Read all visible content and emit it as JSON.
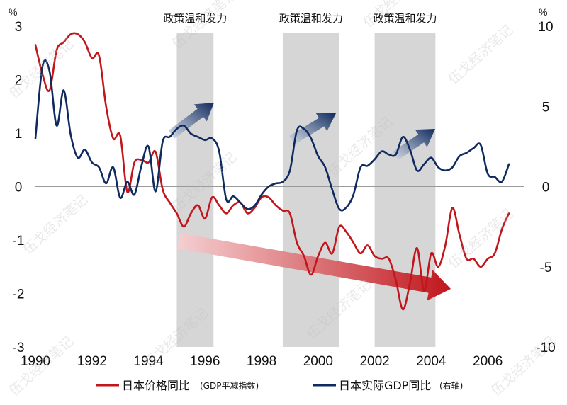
{
  "chart_data": {
    "type": "line",
    "title": "",
    "xlabel": "",
    "left_axis": {
      "unit": "%",
      "ylim": [
        -3,
        3
      ],
      "ticks": [
        -3,
        -2,
        -1,
        0,
        1,
        2,
        3
      ]
    },
    "right_axis": {
      "unit": "%",
      "ylim": [
        -10,
        10
      ],
      "ticks": [
        -10,
        -5,
        0,
        5,
        10
      ]
    },
    "x_axis": {
      "xlim": [
        1990,
        2007.3
      ],
      "ticks": [
        1990,
        1992,
        1994,
        1996,
        1998,
        2000,
        2002,
        2004,
        2006
      ]
    },
    "shaded_periods": [
      {
        "start": 1995.0,
        "end": 1996.3,
        "label": "政策温和发力"
      },
      {
        "start": 1998.75,
        "end": 2000.75,
        "label": "政策温和发力"
      },
      {
        "start": 2002.0,
        "end": 2004.15,
        "label": "政策温和发力"
      }
    ],
    "series": [
      {
        "name": "日本价格同比",
        "note": "(GDP平减指数)",
        "axis": "left",
        "color": "#c0161c",
        "x": [
          1990.0,
          1990.25,
          1990.5,
          1990.75,
          1991.0,
          1991.25,
          1991.5,
          1991.75,
          1992.0,
          1992.25,
          1992.5,
          1992.75,
          1993.0,
          1993.25,
          1993.5,
          1993.75,
          1994.0,
          1994.25,
          1994.5,
          1994.75,
          1995.0,
          1995.25,
          1995.5,
          1995.75,
          1996.0,
          1996.25,
          1996.5,
          1996.75,
          1997.0,
          1997.25,
          1997.5,
          1997.75,
          1998.0,
          1998.25,
          1998.5,
          1998.75,
          1999.0,
          1999.25,
          1999.5,
          1999.75,
          2000.0,
          2000.25,
          2000.5,
          2000.75,
          2001.0,
          2001.25,
          2001.5,
          2001.75,
          2002.0,
          2002.25,
          2002.5,
          2002.75,
          2003.0,
          2003.25,
          2003.5,
          2003.75,
          2004.0,
          2004.25,
          2004.5,
          2004.75,
          2005.0,
          2005.25,
          2005.5,
          2005.75,
          2006.0,
          2006.25,
          2006.5,
          2006.75
        ],
        "values": [
          2.65,
          2.1,
          1.8,
          2.55,
          2.7,
          2.85,
          2.85,
          2.7,
          2.4,
          2.45,
          1.5,
          0.9,
          0.95,
          -0.1,
          0.45,
          0.5,
          0.45,
          0.65,
          -0.05,
          -0.3,
          -0.5,
          -0.75,
          -0.5,
          -0.35,
          -0.6,
          -0.2,
          -0.35,
          -0.5,
          -0.35,
          -0.3,
          -0.5,
          -0.4,
          -0.2,
          -0.2,
          -0.35,
          -0.45,
          -0.5,
          -1.05,
          -1.3,
          -1.65,
          -1.3,
          -1.05,
          -1.25,
          -0.75,
          -0.85,
          -1.05,
          -1.25,
          -1.1,
          -1.3,
          -1.35,
          -1.35,
          -1.75,
          -2.3,
          -1.8,
          -1.15,
          -1.95,
          -1.25,
          -1.5,
          -1.1,
          -0.4,
          -0.9,
          -1.35,
          -1.35,
          -1.5,
          -1.35,
          -1.25,
          -0.8,
          -0.5
        ]
      },
      {
        "name": "日本实际GDP同比",
        "note": "(右轴)",
        "axis": "right",
        "color": "#0f2a5e",
        "x": [
          1990.0,
          1990.25,
          1990.5,
          1990.75,
          1991.0,
          1991.25,
          1991.5,
          1991.75,
          1992.0,
          1992.25,
          1992.5,
          1992.75,
          1993.0,
          1993.25,
          1993.5,
          1993.75,
          1994.0,
          1994.25,
          1994.5,
          1994.75,
          1995.0,
          1995.25,
          1995.5,
          1995.75,
          1996.0,
          1996.25,
          1996.5,
          1996.75,
          1997.0,
          1997.25,
          1997.5,
          1997.75,
          1998.0,
          1998.25,
          1998.5,
          1998.75,
          1999.0,
          1999.25,
          1999.5,
          1999.75,
          2000.0,
          2000.25,
          2000.5,
          2000.75,
          2001.0,
          2001.25,
          2001.5,
          2001.75,
          2002.0,
          2002.25,
          2002.5,
          2002.75,
          2003.0,
          2003.25,
          2003.5,
          2003.75,
          2004.0,
          2004.25,
          2004.5,
          2004.75,
          2005.0,
          2005.25,
          2005.5,
          2005.75,
          2006.0,
          2006.25,
          2006.5,
          2006.75
        ],
        "values": [
          3.0,
          7.5,
          7.2,
          3.8,
          6.0,
          3.2,
          1.8,
          2.3,
          1.5,
          1.2,
          0.2,
          1.2,
          -0.7,
          0.3,
          -0.5,
          1.3,
          2.5,
          -0.3,
          2.8,
          3.1,
          3.6,
          3.8,
          3.3,
          3.1,
          2.9,
          3.0,
          2.2,
          -0.8,
          -0.6,
          -1.0,
          -1.4,
          -1.2,
          -0.5,
          0.0,
          0.2,
          0.3,
          1.0,
          3.5,
          3.6,
          3.0,
          1.9,
          1.2,
          -0.2,
          -1.4,
          -1.3,
          -0.5,
          1.2,
          1.3,
          1.7,
          2.2,
          2.0,
          2.0,
          3.1,
          2.3,
          1.0,
          1.4,
          1.8,
          1.2,
          1.0,
          1.2,
          1.9,
          2.1,
          2.4,
          2.6,
          0.8,
          0.6,
          0.3,
          1.4
        ]
      }
    ],
    "annotations": {
      "trend_arrow": "Price downtrend (red arrow from 1995 to 2004)",
      "up_arrows": 3
    }
  },
  "legend": {
    "price_label": "日本价格同比",
    "price_note": "(GDP平减指数)",
    "gdp_label": "日本实际GDP同比",
    "gdp_note": "(右轴)"
  },
  "watermark": "伍戈经济笔记"
}
